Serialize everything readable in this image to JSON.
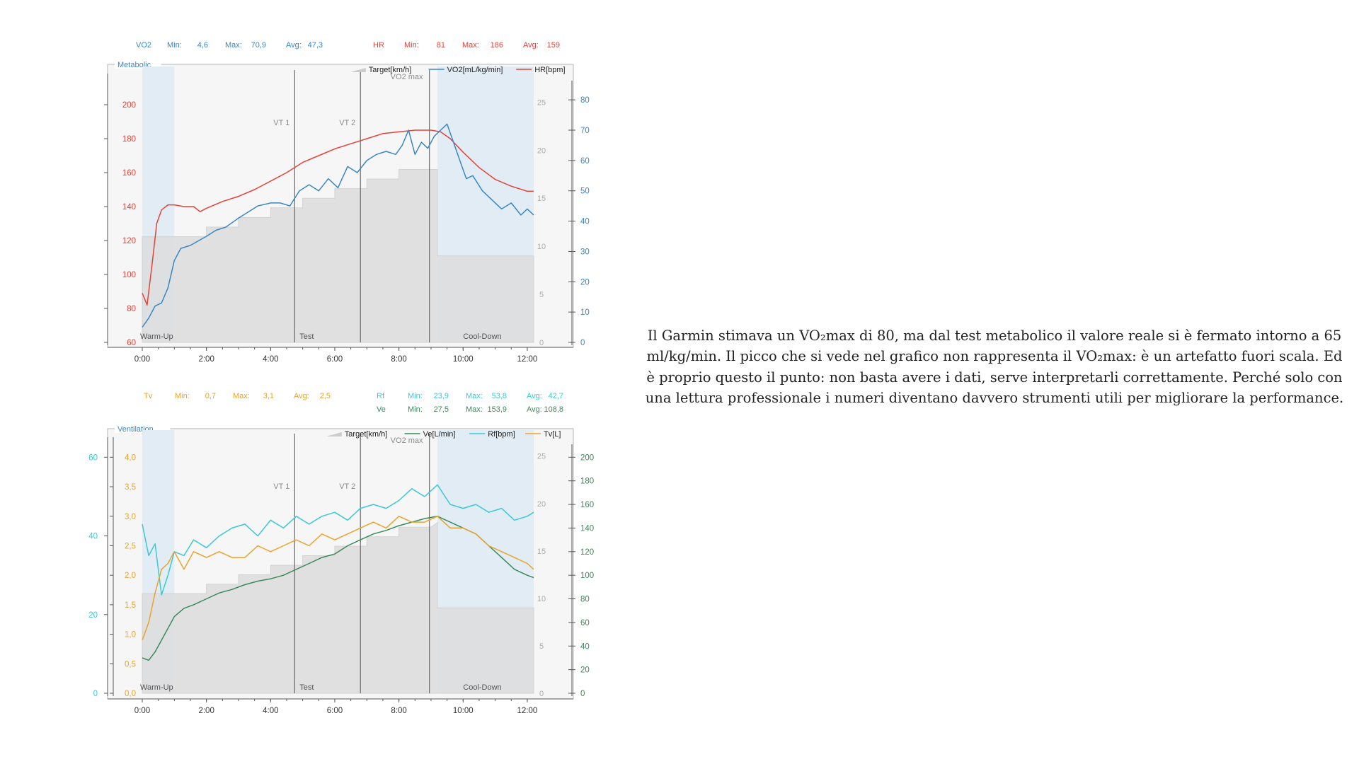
{
  "colors": {
    "vo2": "#3a87c3",
    "hr": "#e0443a",
    "tv": "#e8a32e",
    "rf": "#3cc8d4",
    "ve": "#3a8a5c",
    "target_fill": "#dedede",
    "phase_fill": "#e2ecf4",
    "plot_bg": "#f6f6f6",
    "vline": "#6b6b6b",
    "axis": "#555555"
  },
  "caption": "Il Garmin stimava un VO₂max di 80, ma dal test metabolico il valore reale si è fermato intorno a 65 ml/kg/min. Il picco che si vede nel grafico non rappresenta il VO₂max: è un artefatto fuori scala. Ed è proprio questo il punto: non basta avere i dati, serve interpretarli correttamente. Perché solo con una lettura professionale i numeri diventano davvero strumenti utili per migliorare la performance.",
  "chart_data": [
    {
      "type": "line",
      "title": "Metabolic",
      "x_label_ticks": [
        "0:00",
        "2:00",
        "4:00",
        "6:00",
        "8:00",
        "10:00",
        "12:00"
      ],
      "xlim": [
        0,
        12.2
      ],
      "stats": [
        {
          "name": "VO2",
          "min_label": "Min:",
          "min": "4,6",
          "max_label": "Max:",
          "max": "70,9",
          "avg_label": "Avg:",
          "avg": "47,3"
        },
        {
          "name": "HR",
          "min_label": "Min:",
          "min": "81",
          "max_label": "Max:",
          "max": "186",
          "avg_label": "Avg:",
          "avg": "159"
        }
      ],
      "legend": [
        "Target[km/h]",
        "VO2[mL/kg/min]",
        "HR[bpm]"
      ],
      "axes": {
        "hr": {
          "ticks": [
            "60",
            "80",
            "100",
            "120",
            "140",
            "160",
            "180",
            "200"
          ],
          "range": [
            60,
            210
          ]
        },
        "target": {
          "ticks": [
            "0",
            "5",
            "10",
            "15",
            "20",
            "25"
          ],
          "range": [
            0,
            26.5
          ]
        },
        "vo2": {
          "ticks": [
            "0",
            "10",
            "20",
            "30",
            "40",
            "50",
            "60",
            "70",
            "80"
          ],
          "range": [
            0,
            84
          ]
        }
      },
      "markers": [
        {
          "label": "VT 1",
          "x": 4.75
        },
        {
          "label": "VT 2",
          "x": 6.8
        },
        {
          "label": "VO2 max",
          "x": 8.95
        }
      ],
      "phases": [
        {
          "label": "Warm-Up",
          "start": 0,
          "end": 1.0
        },
        {
          "label": "Test",
          "start": 1.0,
          "end": 9.2
        },
        {
          "label": "Cool-Down",
          "start": 9.2,
          "end": 12.2
        }
      ],
      "target": {
        "x": [
          0,
          2.0,
          2.0,
          3.0,
          3.0,
          4.0,
          4.0,
          5.0,
          5.0,
          6.0,
          6.0,
          7.0,
          7.0,
          8.0,
          8.0,
          9.0,
          9.2,
          9.2,
          12.2
        ],
        "y": [
          11,
          11,
          12,
          12,
          13,
          13,
          14,
          14,
          15,
          15,
          16,
          16,
          17,
          17,
          18,
          18,
          18,
          9,
          9
        ]
      },
      "series": [
        {
          "name": "HR[bpm]",
          "axis": "hr",
          "color": "hr",
          "x": [
            0,
            0.15,
            0.3,
            0.45,
            0.6,
            0.8,
            1.0,
            1.3,
            1.6,
            1.8,
            2.0,
            2.5,
            3.0,
            3.5,
            4.0,
            4.5,
            5.0,
            5.5,
            6.0,
            6.5,
            7.0,
            7.5,
            8.0,
            8.5,
            9.0,
            9.3,
            9.6,
            10.0,
            10.5,
            11.0,
            11.5,
            12.0,
            12.2
          ],
          "y": [
            89,
            82,
            105,
            130,
            138,
            141,
            141,
            140,
            140,
            137,
            139,
            143,
            146,
            150,
            155,
            160,
            166,
            170,
            174,
            177,
            180,
            183,
            184,
            185,
            185,
            184,
            180,
            172,
            163,
            156,
            152,
            149,
            149
          ]
        },
        {
          "name": "VO2[mL/kg/min]",
          "axis": "vo2",
          "color": "vo2",
          "x": [
            0,
            0.2,
            0.4,
            0.6,
            0.8,
            1.0,
            1.2,
            1.5,
            2.0,
            2.3,
            2.6,
            3.0,
            3.3,
            3.6,
            4.0,
            4.3,
            4.6,
            4.9,
            5.2,
            5.5,
            5.8,
            6.1,
            6.4,
            6.7,
            7.0,
            7.3,
            7.6,
            7.9,
            8.1,
            8.3,
            8.5,
            8.7,
            8.9,
            9.1,
            9.3,
            9.5,
            9.7,
            9.9,
            10.1,
            10.3,
            10.6,
            10.9,
            11.2,
            11.5,
            11.8,
            12.0,
            12.2
          ],
          "y": [
            5,
            8,
            12,
            13,
            18,
            27,
            31,
            32,
            35,
            37,
            38,
            41,
            43,
            45,
            46,
            46,
            45,
            50,
            52,
            50,
            54,
            51,
            58,
            56,
            60,
            62,
            63,
            62,
            65,
            70,
            62,
            66,
            64,
            68,
            70,
            72,
            66,
            60,
            54,
            55,
            50,
            47,
            44,
            46,
            42,
            44,
            42
          ]
        }
      ]
    },
    {
      "type": "line",
      "title": "Ventilation",
      "x_label_ticks": [
        "0:00",
        "2:00",
        "4:00",
        "6:00",
        "8:00",
        "10:00",
        "12:00"
      ],
      "xlim": [
        0,
        12.2
      ],
      "stats": [
        {
          "name": "Tv",
          "min_label": "Min:",
          "min": "0,7",
          "max_label": "Max:",
          "max": "3,1",
          "avg_label": "Avg:",
          "avg": "2,5"
        },
        {
          "name": "Rf",
          "min_label": "Min:",
          "min": "23,9",
          "max_label": "Max:",
          "max": "53,8",
          "avg_label": "Avg:",
          "avg": "42,7"
        },
        {
          "name": "Ve",
          "min_label": "Min:",
          "min": "27,5",
          "max_label": "Max:",
          "max": "153,9",
          "avg_label": "Avg:",
          "avg": "108,8"
        }
      ],
      "legend": [
        "Target[km/h]",
        "Ve[L/min]",
        "Rf[bpm]",
        "Tv[L]"
      ],
      "axes": {
        "rf": {
          "ticks": [
            "0",
            "20",
            "40",
            "60"
          ],
          "range": [
            0,
            61.5
          ]
        },
        "tv": {
          "ticks": [
            "0,0",
            "0,5",
            "1,0",
            "1,5",
            "2,0",
            "2,5",
            "3,0",
            "3,5",
            "4,0"
          ],
          "range": [
            0,
            4.1
          ]
        },
        "target": {
          "ticks": [
            "0",
            "5",
            "10",
            "15",
            "20",
            "25"
          ],
          "range": [
            0,
            25.5
          ]
        },
        "ve": {
          "ticks": [
            "0",
            "20",
            "40",
            "60",
            "80",
            "100",
            "120",
            "140",
            "160",
            "180",
            "200"
          ],
          "range": [
            0,
            205
          ]
        }
      },
      "markers": [
        {
          "label": "VT 1",
          "x": 4.75
        },
        {
          "label": "VT 2",
          "x": 6.8
        },
        {
          "label": "VO2 max",
          "x": 8.95
        }
      ],
      "phases": [
        {
          "label": "Warm-Up",
          "start": 0,
          "end": 1.0
        },
        {
          "label": "Test",
          "start": 1.0,
          "end": 9.2
        },
        {
          "label": "Cool-Down",
          "start": 9.2,
          "end": 12.2
        }
      ],
      "target": {
        "x": [
          0,
          2.0,
          2.0,
          3.0,
          3.0,
          4.0,
          4.0,
          5.0,
          5.0,
          6.0,
          6.0,
          7.0,
          7.0,
          8.0,
          8.0,
          9.0,
          9.2,
          9.2,
          12.2
        ],
        "y": [
          10.5,
          10.5,
          11.5,
          11.5,
          12.5,
          12.5,
          13.5,
          13.5,
          14.5,
          14.5,
          15.5,
          15.5,
          16.5,
          16.5,
          17.5,
          17.5,
          18,
          9,
          9
        ]
      },
      "series": [
        {
          "name": "Ve[L/min]",
          "axis": "ve",
          "color": "ve",
          "x": [
            0,
            0.2,
            0.4,
            0.6,
            0.8,
            1.0,
            1.3,
            1.6,
            2.0,
            2.4,
            2.8,
            3.2,
            3.6,
            4.0,
            4.4,
            4.8,
            5.2,
            5.6,
            6.0,
            6.4,
            6.8,
            7.2,
            7.6,
            8.0,
            8.4,
            8.8,
            9.2,
            9.6,
            10.0,
            10.4,
            10.8,
            11.2,
            11.6,
            12.0,
            12.2
          ],
          "y": [
            30,
            28,
            35,
            45,
            55,
            65,
            72,
            75,
            80,
            85,
            88,
            92,
            95,
            97,
            100,
            105,
            110,
            115,
            118,
            125,
            130,
            135,
            138,
            142,
            145,
            148,
            150,
            145,
            140,
            135,
            125,
            115,
            105,
            100,
            98
          ]
        },
        {
          "name": "Rf[bpm]",
          "axis": "rf",
          "color": "rf",
          "x": [
            0,
            0.2,
            0.4,
            0.6,
            0.8,
            1.0,
            1.3,
            1.6,
            2.0,
            2.4,
            2.8,
            3.2,
            3.6,
            4.0,
            4.4,
            4.8,
            5.2,
            5.6,
            6.0,
            6.4,
            6.8,
            7.2,
            7.6,
            8.0,
            8.4,
            8.8,
            9.2,
            9.6,
            10.0,
            10.4,
            10.8,
            11.2,
            11.6,
            12.0,
            12.2
          ],
          "y": [
            43,
            35,
            38,
            25,
            30,
            36,
            35,
            39,
            37,
            40,
            42,
            43,
            40,
            44,
            42,
            45,
            43,
            45,
            46,
            44,
            47,
            48,
            47,
            49,
            52,
            50,
            53,
            48,
            47,
            48,
            46,
            47,
            44,
            45,
            46
          ]
        },
        {
          "name": "Tv[L]",
          "axis": "tv",
          "color": "tv",
          "x": [
            0,
            0.2,
            0.4,
            0.6,
            0.8,
            1.0,
            1.3,
            1.6,
            2.0,
            2.4,
            2.8,
            3.2,
            3.6,
            4.0,
            4.4,
            4.8,
            5.2,
            5.6,
            6.0,
            6.4,
            6.8,
            7.2,
            7.6,
            8.0,
            8.4,
            8.8,
            9.2,
            9.6,
            10.0,
            10.4,
            10.8,
            11.2,
            11.6,
            12.0,
            12.2
          ],
          "y": [
            0.9,
            1.2,
            1.7,
            2.1,
            2.2,
            2.4,
            2.1,
            2.4,
            2.3,
            2.4,
            2.3,
            2.3,
            2.5,
            2.4,
            2.5,
            2.6,
            2.5,
            2.7,
            2.6,
            2.7,
            2.8,
            2.9,
            2.8,
            3.0,
            2.9,
            2.9,
            3.0,
            2.8,
            2.8,
            2.7,
            2.5,
            2.4,
            2.3,
            2.2,
            2.1
          ]
        }
      ]
    }
  ]
}
